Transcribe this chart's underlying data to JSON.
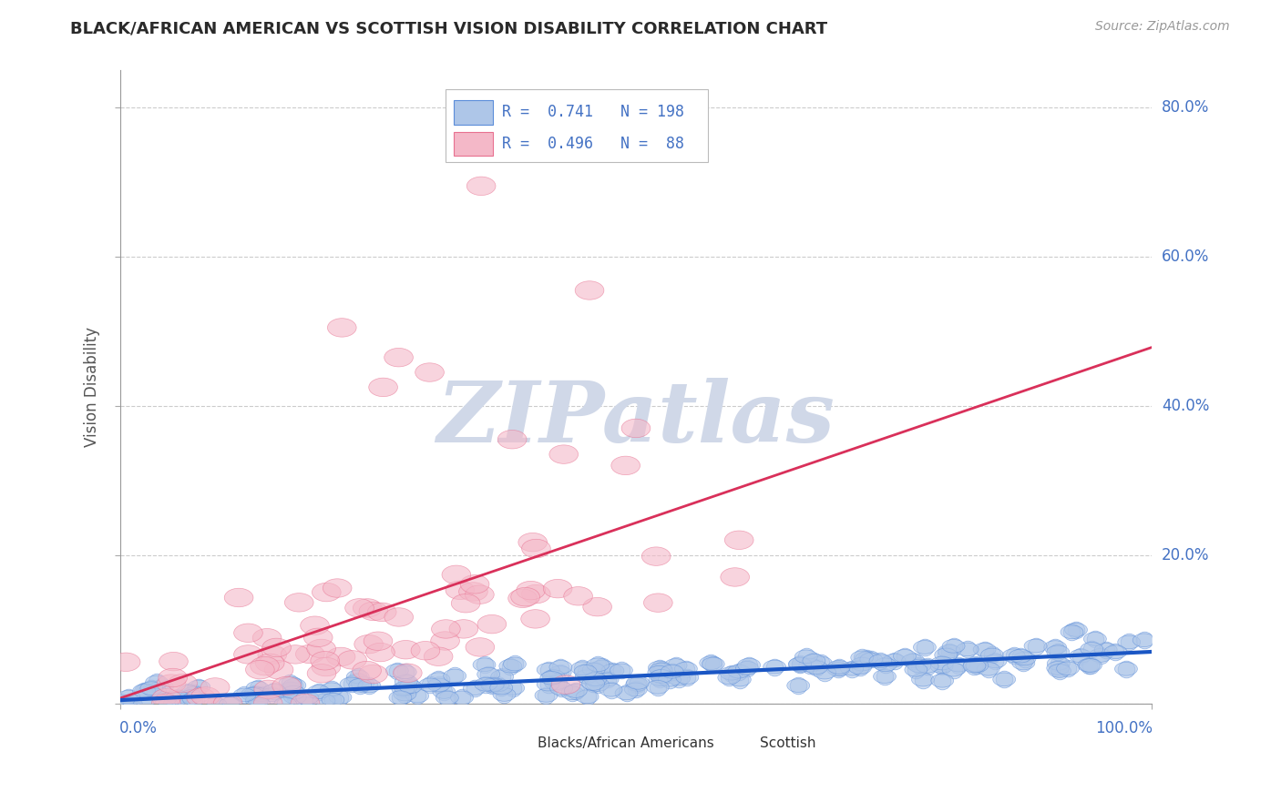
{
  "title": "BLACK/AFRICAN AMERICAN VS SCOTTISH VISION DISABILITY CORRELATION CHART",
  "source": "Source: ZipAtlas.com",
  "ylabel": "Vision Disability",
  "xlim": [
    0,
    1.0
  ],
  "ylim": [
    0,
    0.85
  ],
  "ytick_vals": [
    0.0,
    0.2,
    0.4,
    0.6,
    0.8
  ],
  "ytick_labels": [
    "",
    "20.0%",
    "40.0%",
    "60.0%",
    "80.0%"
  ],
  "blue_R": 0.741,
  "blue_N": 198,
  "pink_R": 0.496,
  "pink_N": 88,
  "blue_fill": "#aec6e8",
  "blue_edge": "#5b8dd9",
  "blue_line": "#1a56c4",
  "pink_fill": "#f4b8c8",
  "pink_edge": "#e87090",
  "pink_line": "#d9305a",
  "grid_color": "#cccccc",
  "title_color": "#2a2a2a",
  "ylabel_color": "#555555",
  "tick_color": "#4472c4",
  "legend_color": "#4472c4",
  "watermark": "ZIPatlas",
  "watermark_color": "#d0d8e8",
  "source_color": "#999999"
}
